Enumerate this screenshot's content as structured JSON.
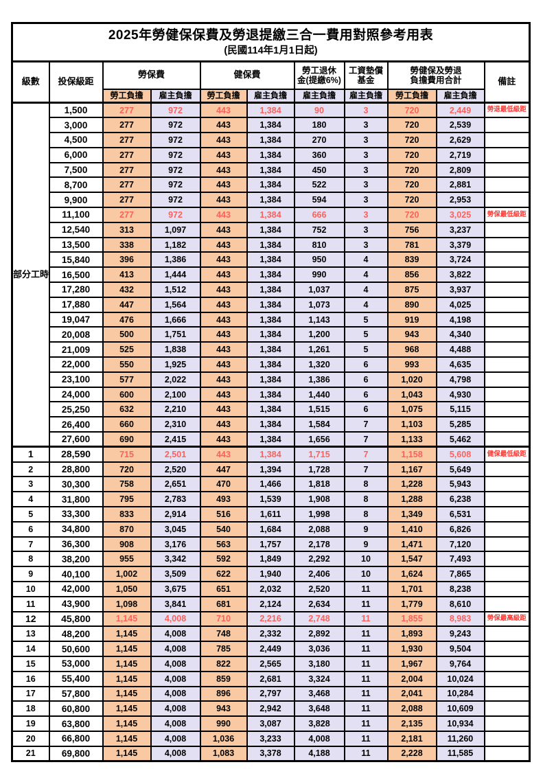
{
  "colors": {
    "employee_column_bg": "#f8c9a2",
    "employer_column_bg": "#e2e0f2",
    "highlight_value_red": "#f9625c",
    "remark_red": "#fb3b35",
    "border": "#000000"
  },
  "table": {
    "title": "2025年勞健保保費及勞退提繳三合一費用對照參考用表",
    "subtitle": "(民國114年1月1日起)",
    "header": {
      "level": "級數",
      "bracket": "投保級距",
      "labor_fee": "勞保費",
      "health_fee": "健保費",
      "pension_line1": "勞工退休",
      "pension_line2": "金(提繳6%)",
      "wage_fund_line1": "工資墊償",
      "wage_fund_line2": "基金",
      "total_line1": "勞健保及勞退",
      "total_line2": "負擔費用合計",
      "remark": "備註",
      "employee_label": "勞工負擔",
      "employer_label": "雇主負擔"
    },
    "part_time_label": "部分工時",
    "rows": [
      {
        "bracket": "1,500",
        "v": [
          "277",
          "972",
          "443",
          "1,384",
          "90",
          "3",
          "720",
          "2,449"
        ],
        "remark": "勞退最低級距",
        "hl": true
      },
      {
        "bracket": "3,000",
        "v": [
          "277",
          "972",
          "443",
          "1,384",
          "180",
          "3",
          "720",
          "2,539"
        ]
      },
      {
        "bracket": "4,500",
        "v": [
          "277",
          "972",
          "443",
          "1,384",
          "270",
          "3",
          "720",
          "2,629"
        ]
      },
      {
        "bracket": "6,000",
        "v": [
          "277",
          "972",
          "443",
          "1,384",
          "360",
          "3",
          "720",
          "2,719"
        ]
      },
      {
        "bracket": "7,500",
        "v": [
          "277",
          "972",
          "443",
          "1,384",
          "450",
          "3",
          "720",
          "2,809"
        ]
      },
      {
        "bracket": "8,700",
        "v": [
          "277",
          "972",
          "443",
          "1,384",
          "522",
          "3",
          "720",
          "2,881"
        ]
      },
      {
        "bracket": "9,900",
        "v": [
          "277",
          "972",
          "443",
          "1,384",
          "594",
          "3",
          "720",
          "2,953"
        ]
      },
      {
        "bracket": "11,100",
        "v": [
          "277",
          "972",
          "443",
          "1,384",
          "666",
          "3",
          "720",
          "3,025"
        ],
        "remark": "勞保最低級距",
        "hl": true
      },
      {
        "bracket": "12,540",
        "v": [
          "313",
          "1,097",
          "443",
          "1,384",
          "752",
          "3",
          "756",
          "3,237"
        ]
      },
      {
        "bracket": "13,500",
        "v": [
          "338",
          "1,182",
          "443",
          "1,384",
          "810",
          "3",
          "781",
          "3,379"
        ]
      },
      {
        "bracket": "15,840",
        "v": [
          "396",
          "1,386",
          "443",
          "1,384",
          "950",
          "4",
          "839",
          "3,724"
        ]
      },
      {
        "bracket": "16,500",
        "v": [
          "413",
          "1,444",
          "443",
          "1,384",
          "990",
          "4",
          "856",
          "3,822"
        ]
      },
      {
        "bracket": "17,280",
        "v": [
          "432",
          "1,512",
          "443",
          "1,384",
          "1,037",
          "4",
          "875",
          "3,937"
        ]
      },
      {
        "bracket": "17,880",
        "v": [
          "447",
          "1,564",
          "443",
          "1,384",
          "1,073",
          "4",
          "890",
          "4,025"
        ]
      },
      {
        "bracket": "19,047",
        "v": [
          "476",
          "1,666",
          "443",
          "1,384",
          "1,143",
          "5",
          "919",
          "4,198"
        ]
      },
      {
        "bracket": "20,008",
        "v": [
          "500",
          "1,751",
          "443",
          "1,384",
          "1,200",
          "5",
          "943",
          "4,340"
        ]
      },
      {
        "bracket": "21,009",
        "v": [
          "525",
          "1,838",
          "443",
          "1,384",
          "1,261",
          "5",
          "968",
          "4,488"
        ]
      },
      {
        "bracket": "22,000",
        "v": [
          "550",
          "1,925",
          "443",
          "1,384",
          "1,320",
          "6",
          "993",
          "4,635"
        ]
      },
      {
        "bracket": "23,100",
        "v": [
          "577",
          "2,022",
          "443",
          "1,384",
          "1,386",
          "6",
          "1,020",
          "4,798"
        ]
      },
      {
        "bracket": "24,000",
        "v": [
          "600",
          "2,100",
          "443",
          "1,384",
          "1,440",
          "6",
          "1,043",
          "4,930"
        ]
      },
      {
        "bracket": "25,250",
        "v": [
          "632",
          "2,210",
          "443",
          "1,384",
          "1,515",
          "6",
          "1,075",
          "5,115"
        ]
      },
      {
        "bracket": "26,400",
        "v": [
          "660",
          "2,310",
          "443",
          "1,384",
          "1,584",
          "7",
          "1,103",
          "5,285"
        ]
      },
      {
        "bracket": "27,600",
        "v": [
          "690",
          "2,415",
          "443",
          "1,384",
          "1,656",
          "7",
          "1,133",
          "5,462"
        ]
      },
      {
        "level": "1",
        "bracket": "28,590",
        "v": [
          "715",
          "2,501",
          "443",
          "1,384",
          "1,715",
          "7",
          "1,158",
          "5,608"
        ],
        "remark": "健保最低級距",
        "hl": true,
        "bold": true
      },
      {
        "level": "2",
        "bracket": "28,800",
        "v": [
          "720",
          "2,520",
          "447",
          "1,394",
          "1,728",
          "7",
          "1,167",
          "5,649"
        ]
      },
      {
        "level": "3",
        "bracket": "30,300",
        "v": [
          "758",
          "2,651",
          "470",
          "1,466",
          "1,818",
          "8",
          "1,228",
          "5,943"
        ]
      },
      {
        "level": "4",
        "bracket": "31,800",
        "v": [
          "795",
          "2,783",
          "493",
          "1,539",
          "1,908",
          "8",
          "1,288",
          "6,238"
        ]
      },
      {
        "level": "5",
        "bracket": "33,300",
        "v": [
          "833",
          "2,914",
          "516",
          "1,611",
          "1,998",
          "8",
          "1,349",
          "6,531"
        ]
      },
      {
        "level": "6",
        "bracket": "34,800",
        "v": [
          "870",
          "3,045",
          "540",
          "1,684",
          "2,088",
          "9",
          "1,410",
          "6,826"
        ]
      },
      {
        "level": "7",
        "bracket": "36,300",
        "v": [
          "908",
          "3,176",
          "563",
          "1,757",
          "2,178",
          "9",
          "1,471",
          "7,120"
        ]
      },
      {
        "level": "8",
        "bracket": "38,200",
        "v": [
          "955",
          "3,342",
          "592",
          "1,849",
          "2,292",
          "10",
          "1,547",
          "7,493"
        ]
      },
      {
        "level": "9",
        "bracket": "40,100",
        "v": [
          "1,002",
          "3,509",
          "622",
          "1,940",
          "2,406",
          "10",
          "1,624",
          "7,865"
        ]
      },
      {
        "level": "10",
        "bracket": "42,000",
        "v": [
          "1,050",
          "3,675",
          "651",
          "2,032",
          "2,520",
          "11",
          "1,701",
          "8,238"
        ]
      },
      {
        "level": "11",
        "bracket": "43,900",
        "v": [
          "1,098",
          "3,841",
          "681",
          "2,124",
          "2,634",
          "11",
          "1,779",
          "8,610"
        ]
      },
      {
        "level": "12",
        "bracket": "45,800",
        "v": [
          "1,145",
          "4,008",
          "710",
          "2,216",
          "2,748",
          "11",
          "1,855",
          "8,983"
        ],
        "remark": "勞保最高級距",
        "hl": true,
        "bold": true
      },
      {
        "level": "13",
        "bracket": "48,200",
        "v": [
          "1,145",
          "4,008",
          "748",
          "2,332",
          "2,892",
          "11",
          "1,893",
          "9,243"
        ]
      },
      {
        "level": "14",
        "bracket": "50,600",
        "v": [
          "1,145",
          "4,008",
          "785",
          "2,449",
          "3,036",
          "11",
          "1,930",
          "9,504"
        ]
      },
      {
        "level": "15",
        "bracket": "53,000",
        "v": [
          "1,145",
          "4,008",
          "822",
          "2,565",
          "3,180",
          "11",
          "1,967",
          "9,764"
        ]
      },
      {
        "level": "16",
        "bracket": "55,400",
        "v": [
          "1,145",
          "4,008",
          "859",
          "2,681",
          "3,324",
          "11",
          "2,004",
          "10,024"
        ]
      },
      {
        "level": "17",
        "bracket": "57,800",
        "v": [
          "1,145",
          "4,008",
          "896",
          "2,797",
          "3,468",
          "11",
          "2,041",
          "10,284"
        ]
      },
      {
        "level": "18",
        "bracket": "60,800",
        "v": [
          "1,145",
          "4,008",
          "943",
          "2,942",
          "3,648",
          "11",
          "2,088",
          "10,609"
        ]
      },
      {
        "level": "19",
        "bracket": "63,800",
        "v": [
          "1,145",
          "4,008",
          "990",
          "3,087",
          "3,828",
          "11",
          "2,135",
          "10,934"
        ]
      },
      {
        "level": "20",
        "bracket": "66,800",
        "v": [
          "1,145",
          "4,008",
          "1,036",
          "3,233",
          "4,008",
          "11",
          "2,181",
          "11,260"
        ]
      },
      {
        "level": "21",
        "bracket": "69,800",
        "v": [
          "1,145",
          "4,008",
          "1,083",
          "3,378",
          "4,188",
          "11",
          "2,228",
          "11,585"
        ]
      }
    ]
  }
}
